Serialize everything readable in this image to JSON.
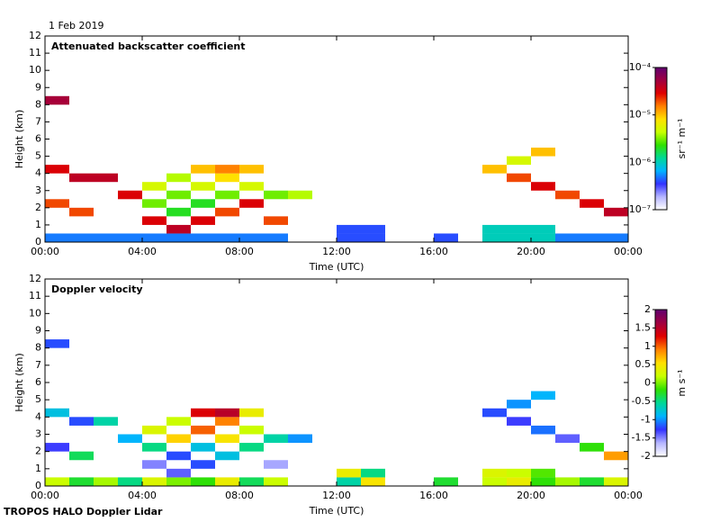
{
  "header": {
    "date": "1 Feb 2019"
  },
  "footer": "TROPOS HALO Doppler Lidar",
  "chart_data": [
    {
      "type": "heatmap",
      "title": "Attenuated backscatter coefficient",
      "x_label": "Time (UTC)",
      "y_label": "Height (km)",
      "xlim": [
        0,
        24
      ],
      "xticks": [
        {
          "value": 0,
          "label": "00:00"
        },
        {
          "value": 4,
          "label": "04:00"
        },
        {
          "value": 8,
          "label": "08:00"
        },
        {
          "value": 12,
          "label": "12:00"
        },
        {
          "value": 16,
          "label": "16:00"
        },
        {
          "value": 20,
          "label": "20:00"
        },
        {
          "value": 24,
          "label": "00:00"
        }
      ],
      "ylim": [
        0,
        12
      ],
      "yticks": [
        0,
        1,
        2,
        3,
        4,
        5,
        6,
        7,
        8,
        9,
        10,
        11,
        12
      ],
      "colorbar": {
        "label": "sr⁻¹ m⁻¹",
        "log": true,
        "lim": [
          1e-07,
          0.0001
        ],
        "ticks": [
          {
            "value": 1e-07,
            "label": "10⁻⁷"
          },
          {
            "value": 1e-06,
            "label": "10⁻⁶"
          },
          {
            "value": 1e-05,
            "label": "10⁻⁵"
          },
          {
            "value": 0.0001,
            "label": "10⁻⁴"
          }
        ],
        "colors": [
          "#ffffff",
          "#b4b4ff",
          "#3232ff",
          "#00b4ff",
          "#00d896",
          "#30e000",
          "#c8ff00",
          "#ffe000",
          "#ff8000",
          "#e00000",
          "#a00040",
          "#600070"
        ]
      },
      "x": [
        0.5,
        1.5,
        2.5,
        3.5,
        4.5,
        5.5,
        6.5,
        7.5,
        8.5,
        9.5,
        12.5,
        13.5,
        16.5,
        18.5,
        19.5,
        20.5,
        21.5,
        22.5,
        23.5,
        12.5,
        13.5,
        18.5,
        19.5,
        20.5,
        0.5,
        0.5,
        1.5,
        2.5,
        3.5,
        0.5,
        1.5,
        4.5,
        5.5,
        6.5,
        7.5,
        8.5,
        9.5,
        4.5,
        4.5,
        5.5,
        5.5,
        5.5,
        6.5,
        6.5,
        6.5,
        7.5,
        7.5,
        7.5,
        8.5,
        8.5,
        9.5,
        10.5,
        18.5,
        19.5,
        20.5,
        20.5,
        21.5,
        22.5,
        23.5,
        19.5
      ],
      "y": [
        0.25,
        0.25,
        0.25,
        0.25,
        0.25,
        0.25,
        0.25,
        0.25,
        0.25,
        0.25,
        0.25,
        0.25,
        0.25,
        0.25,
        0.25,
        0.25,
        0.25,
        0.25,
        0.25,
        0.75,
        0.75,
        0.75,
        0.75,
        0.75,
        8.25,
        4.25,
        3.75,
        3.75,
        2.75,
        2.25,
        1.75,
        1.25,
        0.75,
        1.25,
        1.75,
        2.25,
        1.25,
        2.25,
        3.25,
        1.75,
        2.75,
        3.75,
        2.25,
        3.25,
        4.25,
        2.75,
        3.75,
        4.25,
        3.25,
        4.25,
        2.75,
        2.75,
        4.25,
        3.75,
        3.25,
        5.25,
        2.75,
        2.25,
        1.75,
        4.75
      ],
      "values": [
        5e-07,
        5e-07,
        5e-07,
        5e-07,
        5e-07,
        5e-07,
        5e-07,
        5e-07,
        5e-07,
        5e-07,
        4e-07,
        4e-07,
        4e-07,
        1e-06,
        1e-06,
        1e-06,
        5e-07,
        5e-07,
        5e-07,
        4e-07,
        4e-07,
        1e-06,
        1e-06,
        1e-06,
        5e-05,
        3e-05,
        4e-05,
        4e-05,
        3e-05,
        2e-05,
        2e-05,
        3e-05,
        4e-05,
        3e-05,
        2e-05,
        3e-05,
        2e-05,
        3e-06,
        5e-06,
        2e-06,
        3e-06,
        4e-06,
        2e-06,
        5e-06,
        1e-05,
        3e-06,
        8e-06,
        1.5e-05,
        5e-06,
        1e-05,
        3e-06,
        4e-06,
        1e-05,
        2e-05,
        3e-05,
        1e-05,
        2e-05,
        3e-05,
        4e-05,
        5e-06
      ]
    },
    {
      "type": "heatmap",
      "title": "Doppler velocity",
      "x_label": "Time (UTC)",
      "y_label": "Height (km)",
      "xlim": [
        0,
        24
      ],
      "xticks": [
        {
          "value": 0,
          "label": "00:00"
        },
        {
          "value": 4,
          "label": "04:00"
        },
        {
          "value": 8,
          "label": "08:00"
        },
        {
          "value": 12,
          "label": "12:00"
        },
        {
          "value": 16,
          "label": "16:00"
        },
        {
          "value": 20,
          "label": "20:00"
        },
        {
          "value": 24,
          "label": "00:00"
        }
      ],
      "ylim": [
        0,
        12
      ],
      "yticks": [
        0,
        1,
        2,
        3,
        4,
        5,
        6,
        7,
        8,
        9,
        10,
        11,
        12
      ],
      "colorbar": {
        "label": "m s⁻¹",
        "log": false,
        "lim": [
          -2,
          2
        ],
        "ticks": [
          -2,
          -1.5,
          -1,
          -0.5,
          0,
          0.5,
          1,
          1.5,
          2
        ],
        "colors": [
          "#ffffff",
          "#b4b4ff",
          "#3232ff",
          "#00b4ff",
          "#00d896",
          "#30e000",
          "#c8ff00",
          "#ffe000",
          "#ff8000",
          "#e00000",
          "#a00040",
          "#600070"
        ]
      },
      "x": [
        0.5,
        1.5,
        2.5,
        3.5,
        4.5,
        5.5,
        6.5,
        7.5,
        8.5,
        9.5,
        12.5,
        13.5,
        16.5,
        18.5,
        19.5,
        20.5,
        21.5,
        22.5,
        23.5,
        12.5,
        13.5,
        18.5,
        19.5,
        20.5,
        0.5,
        0.5,
        1.5,
        2.5,
        3.5,
        0.5,
        1.5,
        4.5,
        5.5,
        6.5,
        7.5,
        8.5,
        9.5,
        4.5,
        4.5,
        5.5,
        5.5,
        5.5,
        6.5,
        6.5,
        6.5,
        7.5,
        7.5,
        7.5,
        8.5,
        8.5,
        9.5,
        10.5,
        18.5,
        19.5,
        20.5,
        20.5,
        21.5,
        22.5,
        23.5,
        19.5
      ],
      "y": [
        0.25,
        0.25,
        0.25,
        0.25,
        0.25,
        0.25,
        0.25,
        0.25,
        0.25,
        0.25,
        0.25,
        0.25,
        0.25,
        0.25,
        0.25,
        0.25,
        0.25,
        0.25,
        0.25,
        0.75,
        0.75,
        0.75,
        0.75,
        0.75,
        8.25,
        4.25,
        3.75,
        3.75,
        2.75,
        2.25,
        1.75,
        1.25,
        0.75,
        1.25,
        1.75,
        2.25,
        1.25,
        2.25,
        3.25,
        1.75,
        2.75,
        3.75,
        2.25,
        3.25,
        4.25,
        2.75,
        3.75,
        4.25,
        3.25,
        4.25,
        2.75,
        2.75,
        4.25,
        3.75,
        3.25,
        5.25,
        2.75,
        2.25,
        1.75,
        4.75
      ],
      "values": [
        0.2,
        -0.3,
        0.1,
        -0.5,
        0.3,
        0,
        -0.2,
        0.4,
        -0.4,
        0.2,
        -0.6,
        0.5,
        -0.3,
        0.2,
        0.4,
        -0.2,
        0.1,
        -0.3,
        0.3,
        0.4,
        -0.5,
        0.3,
        0.2,
        -0.1,
        -1.2,
        -0.8,
        -1.2,
        -0.6,
        -0.9,
        -1.3,
        -0.4,
        -1.5,
        -1.4,
        -1.2,
        -0.8,
        -0.5,
        -1.6,
        -0.5,
        0.3,
        -1.2,
        0.6,
        0.2,
        -0.8,
        1.0,
        1.3,
        0.5,
        0.9,
        1.5,
        0.2,
        0.4,
        -0.6,
        -1.0,
        -1.2,
        -1.3,
        -1.1,
        -0.9,
        -1.4,
        -0.2,
        0.8,
        -1.0
      ]
    }
  ]
}
